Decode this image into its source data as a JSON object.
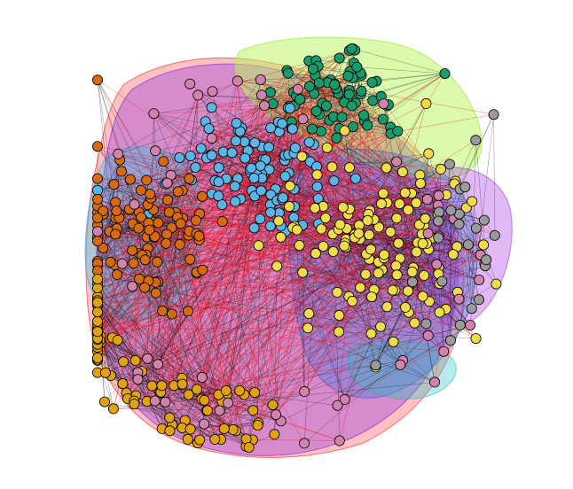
{
  "figure": {
    "type": "network-graph",
    "background": "#ffffff",
    "edge_colors": {
      "between": "#ff0000",
      "within": "#000000"
    },
    "node_stroke": "#000000"
  },
  "clusters": [
    {
      "name": "green",
      "node_color": "#1a9a6c",
      "hull_color": "#b8f55a",
      "nodes": 70
    },
    {
      "name": "blue",
      "node_color": "#5ab4e6",
      "hull_color": "#1f6fe0",
      "nodes": 95
    },
    {
      "name": "orange",
      "node_color": "#d46a12",
      "hull_color": "#3ec2e6",
      "nodes": 100
    },
    {
      "name": "yellow",
      "node_color": "#f0dc4a",
      "hull_color": "#3d8fe6",
      "nodes": 130
    },
    {
      "name": "gold",
      "node_color": "#e0a210",
      "hull_color": "#ff6a6a",
      "nodes": 90
    },
    {
      "name": "pink",
      "node_color": "#d283ac",
      "hull_color": "#8a2be2",
      "nodes": 55
    },
    {
      "name": "gray",
      "node_color": "#9a9a9a",
      "hull_color": "#b24fe8",
      "nodes": 25
    }
  ]
}
